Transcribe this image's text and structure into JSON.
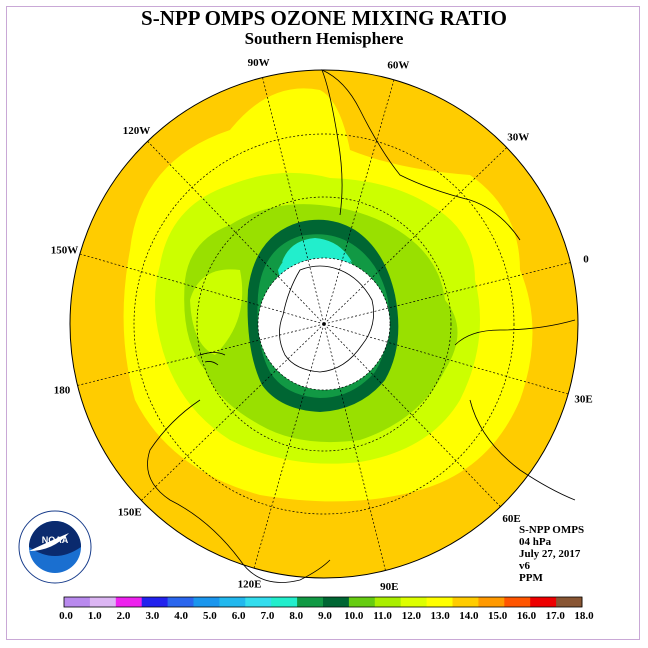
{
  "title": "S-NPP OMPS OZONE MIXING RATIO",
  "subtitle": "Southern Hemisphere",
  "longitude_labels": [
    "90W",
    "60W",
    "30W",
    "0",
    "30E",
    "60E",
    "90E",
    "120E",
    "150E",
    "180",
    "150W",
    "120W"
  ],
  "info": {
    "instrument": "S-NPP OMPS",
    "level": "04 hPa",
    "date": "July 27, 2017",
    "version": "v6",
    "units": "PPM"
  },
  "logo": {
    "text": "NOAA",
    "ring_text": "NATIONAL OCEANIC AND ATMOSPHERIC ADMINISTRATION · U.S. DEPARTMENT OF COMMERCE"
  },
  "colorbar": {
    "ticks": [
      "0.0",
      "1.0",
      "2.0",
      "3.0",
      "4.0",
      "5.0",
      "6.0",
      "7.0",
      "8.0",
      "9.0",
      "10.0",
      "11.0",
      "12.0",
      "13.0",
      "14.0",
      "15.0",
      "16.0",
      "17.0",
      "18.0"
    ],
    "colors": [
      "#b98aee",
      "#dcb6f3",
      "#ee22ee",
      "#2222ee",
      "#2a66ee",
      "#1a96ee",
      "#22b8ee",
      "#33ddee",
      "#22eecc",
      "#119944",
      "#006633",
      "#66cc11",
      "#aaee00",
      "#ddff00",
      "#ffff00",
      "#ffcc00",
      "#ff9900",
      "#ff5500",
      "#ee0000",
      "#885533"
    ]
  },
  "map": {
    "land_outline_color": "#000000",
    "grid_color": "#000000",
    "pole_fill": "#ffffff"
  }
}
